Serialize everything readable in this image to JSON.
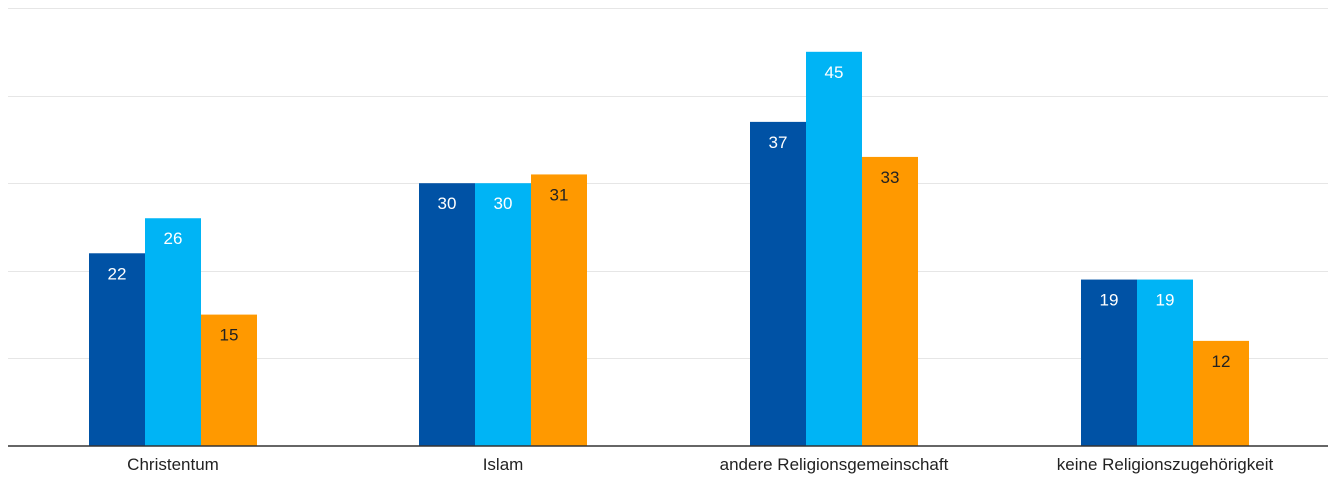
{
  "chart_data": {
    "type": "bar",
    "categories": [
      "Christentum",
      "Islam",
      "andere Religionsgemeinschaft",
      "keine Religionszugehörigkeit"
    ],
    "series": [
      {
        "values": [
          22,
          30,
          37,
          19
        ],
        "color": "#0052a5",
        "label_color": "#ffffff"
      },
      {
        "values": [
          26,
          30,
          45,
          19
        ],
        "color": "#00b4f5",
        "label_color": "#ffffff"
      },
      {
        "values": [
          15,
          31,
          33,
          12
        ],
        "color": "#ff9900",
        "label_color": "#222222"
      }
    ],
    "ylim": [
      0,
      50
    ],
    "grid": true,
    "title": "",
    "xlabel": "",
    "ylabel": ""
  }
}
